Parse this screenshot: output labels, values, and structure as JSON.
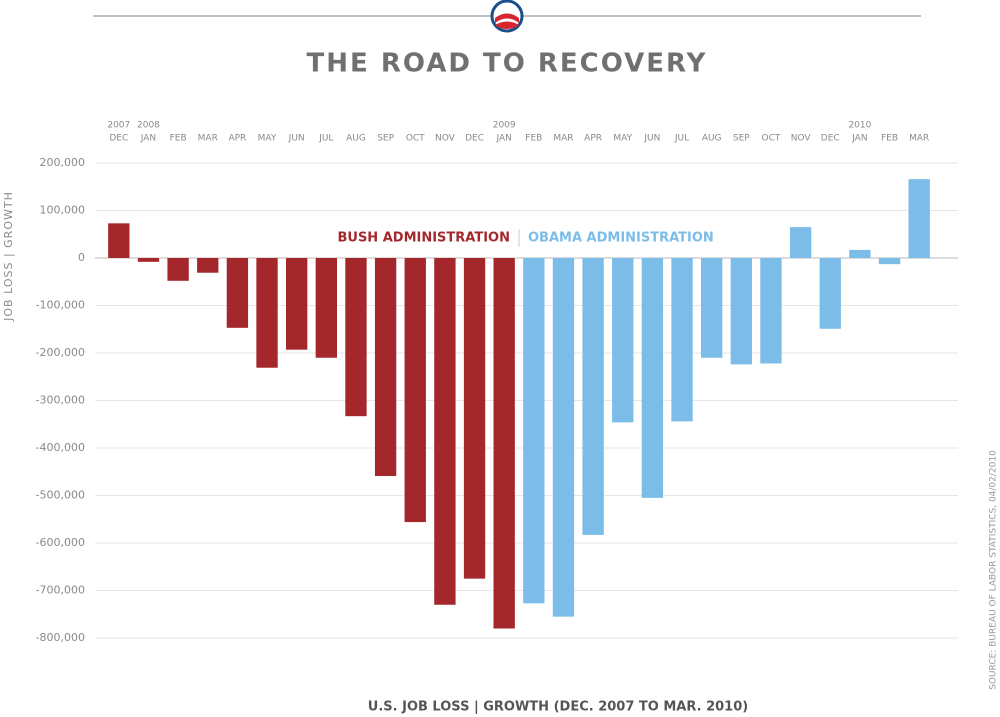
{
  "chart_data": {
    "type": "bar",
    "title": "THE ROAD TO RECOVERY",
    "y_label": "JOB LOSS | GROWTH",
    "x_label": "U.S. JOB LOSS | GROWTH (DEC. 2007 TO MAR. 2010)",
    "source": "SOURCE: BUREAU OF LABOR STATISTICS, 04/02/2010",
    "annotations": [
      "BUSH ADMINISTRATION",
      "OBAMA ADMINISTRATION"
    ],
    "categories": [
      "DEC",
      "JAN",
      "FEB",
      "MAR",
      "APR",
      "MAY",
      "JUN",
      "JUL",
      "AUG",
      "SEP",
      "OCT",
      "NOV",
      "DEC",
      "JAN",
      "FEB",
      "MAR",
      "APR",
      "MAY",
      "JUN",
      "JUL",
      "AUG",
      "SEP",
      "OCT",
      "NOV",
      "DEC",
      "JAN",
      "FEB",
      "MAR"
    ],
    "years": [
      "2007",
      "2008",
      null,
      null,
      null,
      null,
      null,
      null,
      null,
      null,
      null,
      null,
      null,
      "2009",
      null,
      null,
      null,
      null,
      null,
      null,
      null,
      null,
      null,
      null,
      null,
      "2010",
      null,
      null
    ],
    "series": [
      {
        "name": "BUSH ADMINISTRATION",
        "color": "#a4282b",
        "values": [
          73000,
          -8000,
          -48000,
          -31000,
          -147000,
          -231000,
          -193000,
          -210000,
          -333000,
          -459000,
          -556000,
          -730000,
          -675000,
          -780000,
          null,
          null,
          null,
          null,
          null,
          null,
          null,
          null,
          null,
          null,
          null,
          null,
          null,
          null
        ]
      },
      {
        "name": "OBAMA ADMINISTRATION",
        "color": "#7bbde8",
        "values": [
          null,
          null,
          null,
          null,
          null,
          null,
          null,
          null,
          null,
          null,
          null,
          null,
          null,
          null,
          -727000,
          -755000,
          -583000,
          -346000,
          -505000,
          -344000,
          -210000,
          -224000,
          -222000,
          65000,
          -149000,
          17000,
          -13000,
          166000
        ]
      }
    ],
    "ylim": [
      -800000,
      200000
    ],
    "yticks": [
      {
        "value": 200000,
        "label": "200,000"
      },
      {
        "value": 100000,
        "label": "100,000"
      },
      0,
      {
        "value": -100000,
        "label": "-100,000"
      },
      {
        "value": -200000,
        "label": "-200,000"
      },
      {
        "value": -300000,
        "label": "-300,000"
      },
      {
        "value": -400000,
        "label": "-400,000"
      },
      {
        "value": -500000,
        "label": "-500,000"
      },
      {
        "value": -600000,
        "label": "-600,000"
      },
      {
        "value": -700000,
        "label": "-700,000"
      },
      {
        "value": -800000,
        "label": "-800,000"
      }
    ],
    "grid": true
  }
}
